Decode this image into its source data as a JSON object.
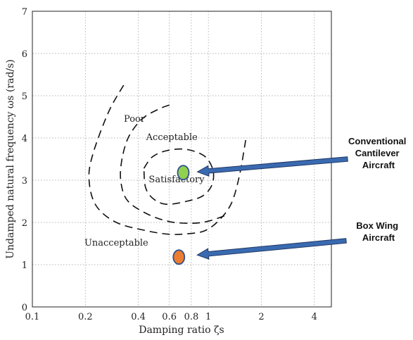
{
  "chart_data": {
    "type": "scatter",
    "xscale": "log",
    "xlim": [
      0.1,
      5
    ],
    "ylim": [
      0,
      7
    ],
    "xticks": [
      0.1,
      0.2,
      0.4,
      0.6,
      0.8,
      1,
      2,
      4
    ],
    "xtick_labels": [
      "0.1",
      "0.2",
      "0.4",
      "0.6",
      "0.8",
      "1",
      "2",
      "4"
    ],
    "yticks": [
      0,
      1,
      2,
      3,
      4,
      5,
      6,
      7
    ],
    "ytick_labels": [
      "0",
      "1",
      "2",
      "3",
      "4",
      "5",
      "6",
      "7"
    ],
    "xlabel": "Damping ratio ζs",
    "ylabel": "Undamped natural frequency ωs (rad/s)",
    "grid": true,
    "regions": [
      {
        "label": "Poor",
        "x": 0.38,
        "y": 4.38
      },
      {
        "label": "Acceptable",
        "x": 0.62,
        "y": 3.95
      },
      {
        "label": "Satisfactory",
        "x": 0.66,
        "y": 2.95
      },
      {
        "label": "Unacceptable",
        "x": 0.3,
        "y": 1.45
      }
    ],
    "boundaries": [
      {
        "name": "poor",
        "points": [
          [
            0.33,
            5.25
          ],
          [
            0.27,
            4.6
          ],
          [
            0.22,
            3.6
          ],
          [
            0.21,
            3.0
          ],
          [
            0.23,
            2.4
          ],
          [
            0.3,
            2.0
          ],
          [
            0.45,
            1.8
          ],
          [
            0.6,
            1.72
          ],
          [
            0.75,
            1.73
          ],
          [
            0.95,
            1.8
          ],
          [
            1.15,
            2.05
          ],
          [
            1.35,
            2.45
          ],
          [
            1.5,
            3.1
          ],
          [
            1.63,
            3.95
          ]
        ]
      },
      {
        "name": "acceptable",
        "points": [
          [
            0.6,
            4.78
          ],
          [
            0.52,
            4.68
          ],
          [
            0.42,
            4.45
          ],
          [
            0.35,
            4.0
          ],
          [
            0.32,
            3.4
          ],
          [
            0.32,
            2.9
          ],
          [
            0.35,
            2.5
          ],
          [
            0.45,
            2.2
          ],
          [
            0.6,
            2.02
          ],
          [
            0.8,
            1.98
          ],
          [
            1.0,
            2.03
          ],
          [
            1.28,
            2.18
          ]
        ]
      },
      {
        "name": "satisfactory",
        "points": [
          [
            0.43,
            3.28
          ],
          [
            0.48,
            3.55
          ],
          [
            0.58,
            3.7
          ],
          [
            0.75,
            3.73
          ],
          [
            0.95,
            3.57
          ],
          [
            1.06,
            3.25
          ],
          [
            1.05,
            2.9
          ],
          [
            0.93,
            2.63
          ],
          [
            0.75,
            2.5
          ],
          [
            0.58,
            2.43
          ],
          [
            0.49,
            2.55
          ],
          [
            0.44,
            2.82
          ],
          [
            0.43,
            3.28
          ]
        ]
      }
    ],
    "points": [
      {
        "label": "Conventional Cantilever Aircraft",
        "x": 0.72,
        "y": 3.18,
        "color": "#92d050"
      },
      {
        "label": "Box Wing Aircraft",
        "x": 0.68,
        "y": 1.18,
        "color": "#ed7d31"
      }
    ],
    "annotations": [
      {
        "lines": [
          "Conventional",
          "Cantilever",
          "Aircraft"
        ],
        "arrow_to": 0
      },
      {
        "lines": [
          "Box Wing",
          "Aircraft"
        ],
        "arrow_to": 1
      }
    ],
    "colors": {
      "arrow": "#3a6ab0",
      "arrow_edge": "#1f3864",
      "marker_edge": "#2f528f"
    }
  }
}
